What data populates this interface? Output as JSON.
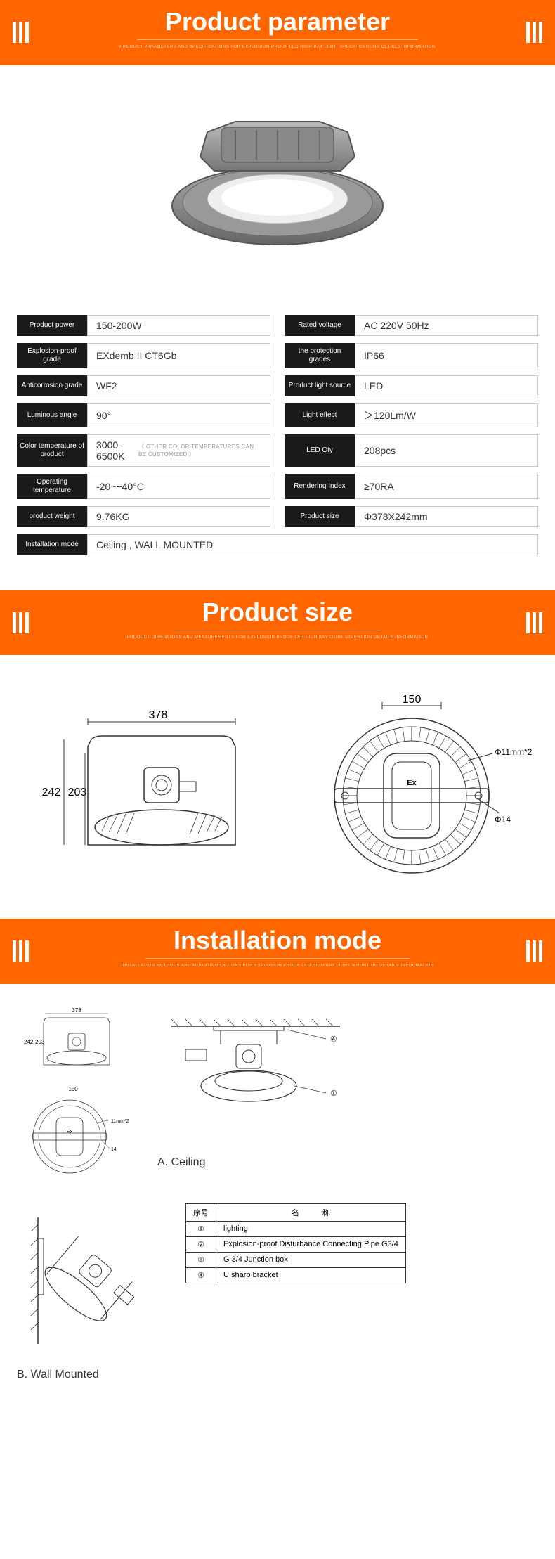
{
  "banner1": {
    "title": "Product parameter",
    "sub": "PRODUCT PARAMETERS AND SPECIFICATIONS FOR EXPLOSION PROOF LED HIGH BAY LIGHT\nSPECIFICATIONS DETAILS INFORMATION"
  },
  "banner2": {
    "title": "Product size",
    "sub": "PRODUCT DIMENSIONS AND MEASUREMENTS FOR EXPLOSION PROOF LED HIGH BAY LIGHT\nDIMENSION DETAILS INFORMATION"
  },
  "banner3": {
    "title": "Installation mode",
    "sub": "INSTALLATION METHODS AND MOUNTING OPTIONS FOR EXPLOSION PROOF LED HIGH BAY LIGHT\nMOUNTING DETAILS INFORMATION"
  },
  "specs": [
    {
      "label": "Product power",
      "value": "150-200W"
    },
    {
      "label": "Rated voltage",
      "value": "AC 220V  50Hz"
    },
    {
      "label": "Explosion-proof grade",
      "value": "EXdemb II CT6Gb"
    },
    {
      "label": "the protection grades",
      "value": "IP66"
    },
    {
      "label": "Anticorrosion grade",
      "value": "WF2"
    },
    {
      "label": "Product light source",
      "value": "LED"
    },
    {
      "label": "Luminous angle",
      "value": "90°"
    },
    {
      "label": "Light effect",
      "value": "＞120Lm/W"
    },
    {
      "label": "Color temperature of product",
      "value": "3000-6500K",
      "note": "（ OTHER COLOR TEMPERATURES CAN BE CUSTOMIZED ）"
    },
    {
      "label": "LED  Qty",
      "value": "208pcs"
    },
    {
      "label": "Operating temperature",
      "value": "-20~+40°C"
    },
    {
      "label": "Rendering Index",
      "value": "≥70RA"
    },
    {
      "label": "product weight",
      "value": "9.76KG"
    },
    {
      "label": "Product size",
      "value": "Φ378X242mm"
    },
    {
      "label": "Installation mode",
      "value": "Ceiling , WALL MOUNTED",
      "full": true
    }
  ],
  "size": {
    "dim1_w": "378",
    "dim1_h1": "242",
    "dim1_h2": "203",
    "dim2_w": "150",
    "dim2_d1": "Φ11mm*2",
    "dim2_d2": "Φ14",
    "ex": "Ex"
  },
  "install": {
    "labelA": "A. Ceiling",
    "labelB": "B. Wall Mounted",
    "small_w": "378",
    "small_h1": "242",
    "small_h2": "203",
    "small2_w": "150",
    "small2_d1": "11mm*2",
    "small2_d2": "14",
    "m1": "④",
    "m2": "①",
    "table_header1": "序号",
    "table_header2": "名　　　称",
    "rows": [
      {
        "n": "①",
        "t": "lighting"
      },
      {
        "n": "②",
        "t": "Explosion-proof Disturbance Connecting Pipe G3/4"
      },
      {
        "n": "③",
        "t": "G 3/4 Junction box"
      },
      {
        "n": "④",
        "t": "U sharp bracket"
      }
    ]
  },
  "colors": {
    "orange": "#ff6600",
    "black": "#1a1a1a",
    "border": "#cccccc",
    "text": "#333333"
  }
}
